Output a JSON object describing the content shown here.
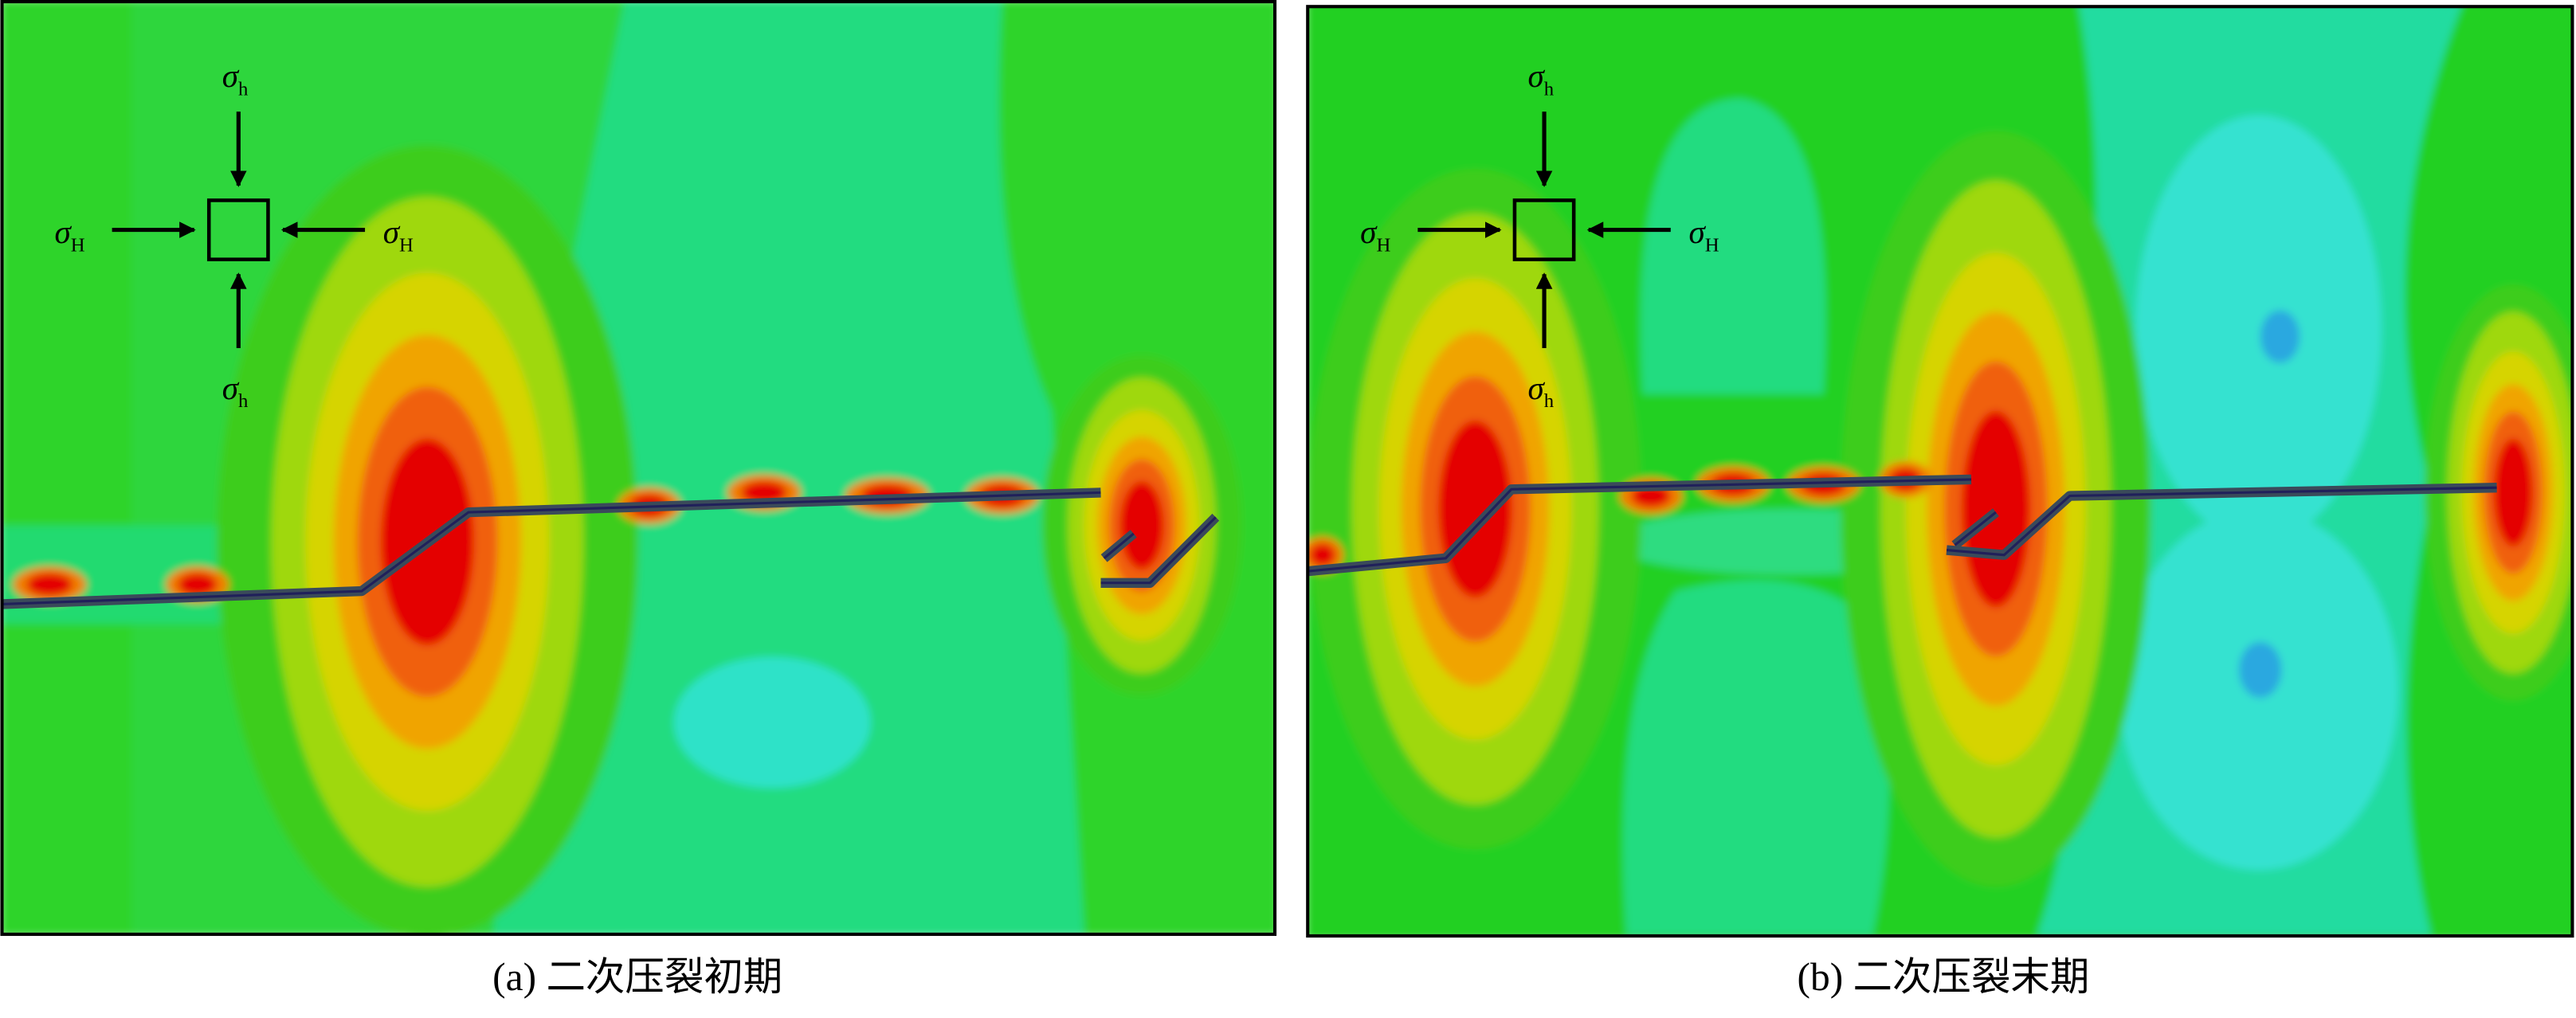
{
  "panels": [
    {
      "caption": "(a) 二次压裂初期",
      "labels": {
        "top": {
          "symbol": "σ",
          "sub": "h"
        },
        "left": {
          "symbol": "σ",
          "sub": "H"
        },
        "right": {
          "symbol": "σ",
          "sub": "H"
        },
        "bottom": {
          "symbol": "σ",
          "sub": "h"
        }
      }
    },
    {
      "caption": "(b) 二次压裂末期",
      "labels": {
        "top": {
          "symbol": "σ",
          "sub": "h"
        },
        "left": {
          "symbol": "σ",
          "sub": "H"
        },
        "right": {
          "symbol": "σ",
          "sub": "H"
        },
        "bottom": {
          "symbol": "σ",
          "sub": "h"
        }
      }
    }
  ]
}
